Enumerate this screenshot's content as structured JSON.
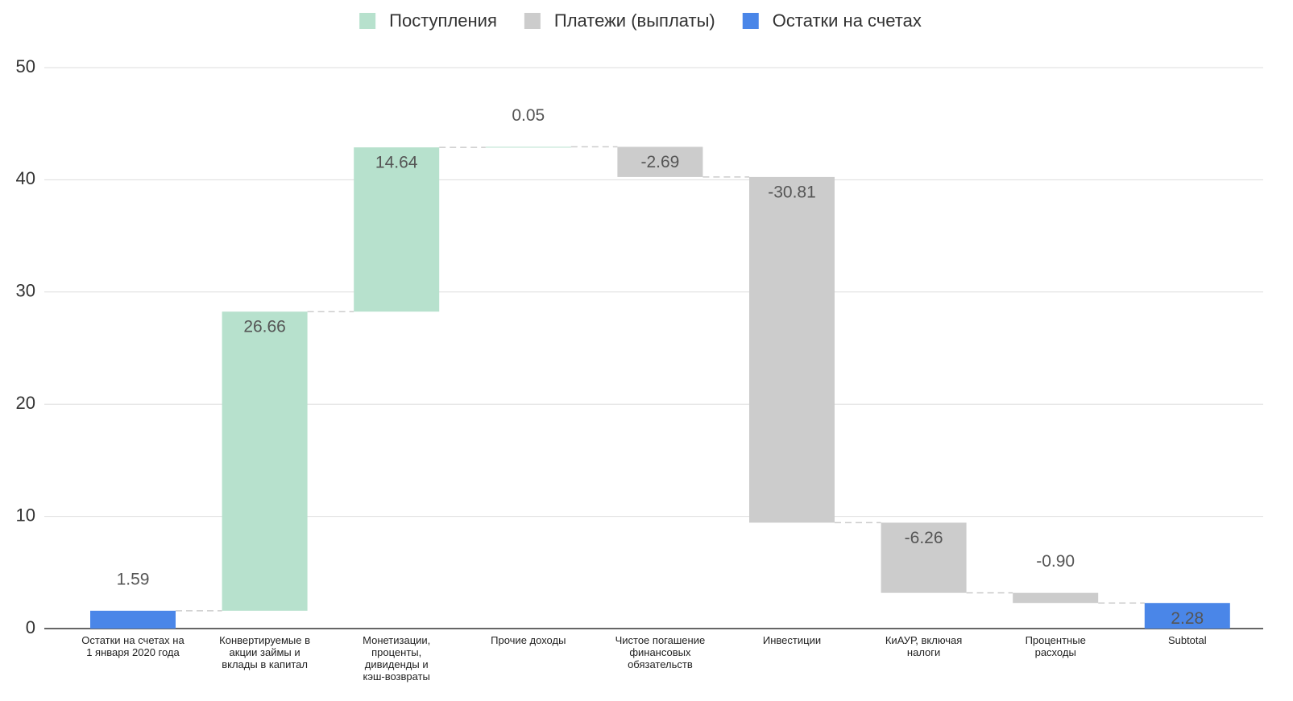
{
  "chart_data": {
    "type": "waterfall",
    "categories": [
      "Остатки на счетах на 1 января 2020 года",
      "Конвертируемые в акции займы и вклады в капитал",
      "Монетизации, проценты, дивиденды и кэш-возвраты",
      "Прочие доходы",
      "Чистое погашение финансовых обязательств",
      "Инвестиции",
      "КиАУР, включая налоги",
      "Процентные расходы",
      "Subtotal"
    ],
    "series": [
      {
        "name": "Поступления",
        "color": "#b7e1cd",
        "values": [
          null,
          26.66,
          14.64,
          0.05,
          null,
          null,
          null,
          null,
          null
        ],
        "value_labels": [
          null,
          "26.66",
          "14.64",
          "0.05",
          null,
          null,
          null,
          null,
          null
        ]
      },
      {
        "name": "Платежи (выплаты)",
        "color": "#cccccc",
        "values": [
          null,
          null,
          null,
          null,
          -2.69,
          -30.81,
          -6.26,
          -0.9,
          null
        ],
        "value_labels": [
          null,
          null,
          null,
          null,
          "-2.69",
          "-30.81",
          "-6.26",
          "-0.90",
          null
        ]
      },
      {
        "name": "Остатки на счетах",
        "color": "#4a86e8",
        "subtotal": true,
        "values": [
          1.59,
          null,
          null,
          null,
          null,
          null,
          null,
          null,
          2.28
        ],
        "value_labels": [
          "1.59",
          null,
          null,
          null,
          null,
          null,
          null,
          null,
          "2.28"
        ]
      }
    ],
    "ylim": [
      0,
      50
    ],
    "yticks": [
      0,
      10,
      20,
      30,
      40,
      50
    ],
    "grid": true,
    "legend": "top"
  }
}
